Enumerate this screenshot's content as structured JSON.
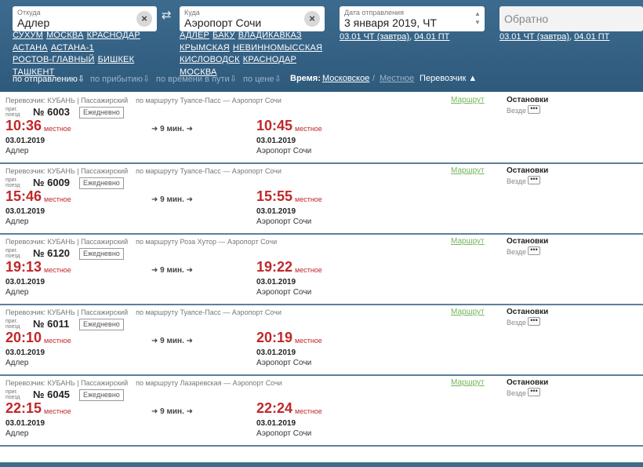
{
  "search": {
    "from_caption": "Откуда",
    "from_value": "Адлер",
    "to_caption": "Куда",
    "to_value": "Аэропорт Сочи",
    "date_caption": "Дата отправления",
    "date_value": "3 января 2019, ЧТ",
    "return_placeholder": "Обратно",
    "clear_label": "×",
    "swap_label": "⇄",
    "from_quick": [
      "СУХУМ",
      "МОСКВА",
      "КРАСНОДАР",
      "АСТАНА",
      "АСТАНА-1",
      "РОСТОВ-ГЛАВНЫЙ",
      "БИШКЕК",
      "ТАШКЕНТ"
    ],
    "to_quick": [
      "АДЛЕР",
      "БАКУ",
      "ВЛАДИКАВКАЗ",
      "КРЫМСКАЯ",
      "НЕВИННОМЫССКАЯ",
      "КИСЛОВОДСК",
      "КРАСНОДАР",
      "МОСКВА"
    ],
    "date_hint_1": "03.01 ЧТ (завтра)",
    "date_hint_2": "04.01 ПТ",
    "return_hint_1": "03.01 ЧТ (завтра)",
    "return_hint_2": "04.01 ПТ"
  },
  "sortbar": {
    "by_departure": "по отправлению",
    "by_arrival": "по прибытию",
    "by_travel": "по времени в пути",
    "by_price": "по цене",
    "time_label": "Время:",
    "time_moscow": "Московское",
    "time_sep": "/",
    "time_local": "Местное",
    "carrier": "Перевозчик"
  },
  "labels": {
    "train_kind": "приг. поезд",
    "daily": "Ежедневно",
    "local": "местное",
    "route": "Маршрут",
    "stops": "Остановки",
    "everywhere": "Везде",
    "more": "•••",
    "arrow": "➜"
  },
  "trains": [
    {
      "carrier": "Перевозчик: КУБАНЬ | Пассажирский",
      "route": "по маршруту Туапсе-Пасс — Аэропорт Сочи",
      "number": "№ 6003",
      "dep_time": "10:36",
      "arr_time": "10:45",
      "duration": "9 мин.",
      "dep_date": "03.01.2019",
      "arr_date": "03.01.2019",
      "dep_station": "Адлер",
      "arr_station": "Аэропорт Сочи"
    },
    {
      "carrier": "Перевозчик: КУБАНЬ | Пассажирский",
      "route": "по маршруту Туапсе-Пасс — Аэропорт Сочи",
      "number": "№ 6009",
      "dep_time": "15:46",
      "arr_time": "15:55",
      "duration": "9 мин.",
      "dep_date": "03.01.2019",
      "arr_date": "03.01.2019",
      "dep_station": "Адлер",
      "arr_station": "Аэропорт Сочи"
    },
    {
      "carrier": "Перевозчик: КУБАНЬ | Пассажирский",
      "route": "по маршруту Роза Хутор — Аэропорт Сочи",
      "number": "№ 6120",
      "dep_time": "19:13",
      "arr_time": "19:22",
      "duration": "9 мин.",
      "dep_date": "03.01.2019",
      "arr_date": "03.01.2019",
      "dep_station": "Адлер",
      "arr_station": "Аэропорт Сочи"
    },
    {
      "carrier": "Перевозчик: КУБАНЬ | Пассажирский",
      "route": "по маршруту Туапсе-Пасс — Аэропорт Сочи",
      "number": "№ 6011",
      "dep_time": "20:10",
      "arr_time": "20:19",
      "duration": "9 мин.",
      "dep_date": "03.01.2019",
      "arr_date": "03.01.2019",
      "dep_station": "Адлер",
      "arr_station": "Аэропорт Сочи"
    },
    {
      "carrier": "Перевозчик: КУБАНЬ | Пассажирский",
      "route": "по маршруту Лазаревская — Аэропорт Сочи",
      "number": "№ 6045",
      "dep_time": "22:15",
      "arr_time": "22:24",
      "duration": "9 мин.",
      "dep_date": "03.01.2019",
      "arr_date": "03.01.2019",
      "dep_station": "Адлер",
      "arr_station": "Аэропорт Сочи"
    }
  ]
}
